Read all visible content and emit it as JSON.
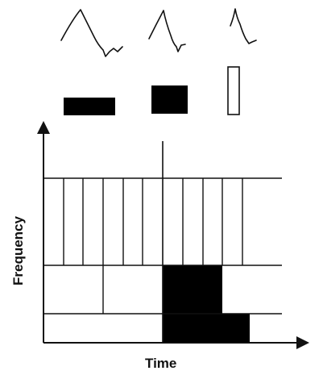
{
  "axes": {
    "x_label": "Time",
    "y_label": "Frequency"
  },
  "colors": {
    "ink": "#111111",
    "fill": "#000000",
    "background": "#ffffff"
  },
  "waveforms": [
    {
      "name": "waveform-1",
      "shape": "long-decay"
    },
    {
      "name": "waveform-2",
      "shape": "medium-decay"
    },
    {
      "name": "waveform-3",
      "shape": "short-decay"
    }
  ],
  "window_bars": [
    {
      "name": "wide-window-bar",
      "filled": true
    },
    {
      "name": "medium-window-bar",
      "filled": true
    },
    {
      "name": "narrow-window-bar",
      "filled": false
    }
  ],
  "tiling": {
    "regions": [
      "uniform-narrow-band-region",
      "low-frequency-region",
      "lowest-frequency-region"
    ],
    "highlighted_cells": 2
  }
}
